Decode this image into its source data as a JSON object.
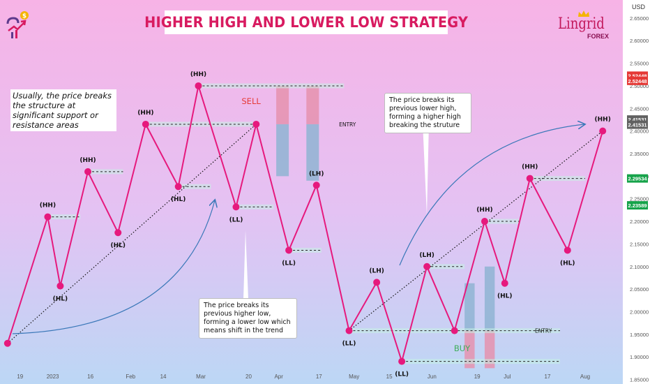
{
  "title": "HIGHER HIGH AND LOWER LOW STRATEGY",
  "brand": {
    "name": "Lingrid",
    "sub": "FOREX"
  },
  "note": "Usually, the price breaks the structure at significant support or resistance areas",
  "callouts": [
    {
      "text": "The price breaks its previous higher low, forming a lower low which means shift in the trend"
    },
    {
      "text": "The price breaks its previous lower high, forming a higher high breaking the struture"
    }
  ],
  "currency": "USD",
  "colors": {
    "line": "#e6197d",
    "point": "#e6197d",
    "level": "#10b981",
    "tp": "#e592ae",
    "sl": "#8fb4d2",
    "arrow": "#3a78b8",
    "sell": "#e53935",
    "buy": "#3dae5a"
  },
  "chart_data": {
    "type": "line",
    "series": [
      {
        "points": [
          {
            "x": "2022-12-14",
            "y": 1.93,
            "label": ""
          },
          {
            "x": "2022-12-30",
            "y": 2.21,
            "label": "(HH)"
          },
          {
            "x": "2023-01-04",
            "y": 2.057,
            "label": "(HL)"
          },
          {
            "x": "2023-01-15",
            "y": 2.31,
            "label": "(HH)"
          },
          {
            "x": "2023-01-27",
            "y": 2.175,
            "label": "(HL)"
          },
          {
            "x": "2023-02-07",
            "y": 2.415,
            "label": "(HH)"
          },
          {
            "x": "2023-02-20",
            "y": 2.277,
            "label": "(HL)"
          },
          {
            "x": "2023-02-28",
            "y": 2.5,
            "label": "(HH)"
          },
          {
            "x": "2023-03-15",
            "y": 2.232,
            "label": "(LL)"
          },
          {
            "x": "2023-03-23",
            "y": 2.415,
            "label": ""
          },
          {
            "x": "2023-04-05",
            "y": 2.136,
            "label": "(LL)"
          },
          {
            "x": "2023-04-16",
            "y": 2.28,
            "label": "(LH)"
          },
          {
            "x": "2023-04-29",
            "y": 1.958,
            "label": "(LL)"
          },
          {
            "x": "2023-05-10",
            "y": 2.065,
            "label": "(LH)"
          },
          {
            "x": "2023-05-20",
            "y": 1.89,
            "label": "(LL)"
          },
          {
            "x": "2023-05-30",
            "y": 2.1,
            "label": "(LH)"
          },
          {
            "x": "2023-06-10",
            "y": 1.958,
            "label": ""
          },
          {
            "x": "2023-06-22",
            "y": 2.2,
            "label": "(HH)"
          },
          {
            "x": "2023-06-30",
            "y": 2.063,
            "label": "(HL)"
          },
          {
            "x": "2023-07-10",
            "y": 2.295,
            "label": "(HH)"
          },
          {
            "x": "2023-07-25",
            "y": 2.136,
            "label": "(HL)"
          },
          {
            "x": "2023-08-08",
            "y": 2.4,
            "label": "(HH)"
          }
        ]
      }
    ],
    "trendlines": [
      {
        "from": {
          "x": "2022-12-14",
          "y": 1.93
        },
        "to": {
          "x": "2023-03-23",
          "y": 2.415
        }
      },
      {
        "from": {
          "x": "2023-04-29",
          "y": 1.958
        },
        "to": {
          "x": "2023-08-08",
          "y": 2.4
        }
      }
    ],
    "levels": [
      {
        "y": 2.21,
        "from": "2022-12-30",
        "to": "2023-01-12"
      },
      {
        "y": 2.31,
        "from": "2023-01-15",
        "to": "2023-01-29"
      },
      {
        "y": 2.415,
        "from": "2023-02-07",
        "to": "2023-03-23"
      },
      {
        "y": 2.5,
        "from": "2023-02-28",
        "to": "2023-04-27"
      },
      {
        "y": 2.277,
        "from": "2023-02-20",
        "to": "2023-03-05"
      },
      {
        "y": 2.232,
        "from": "2023-03-15",
        "to": "2023-03-30"
      },
      {
        "y": 2.136,
        "from": "2023-04-05",
        "to": "2023-04-18"
      },
      {
        "y": 1.958,
        "from": "2023-04-29",
        "to": "2023-07-22"
      },
      {
        "y": 1.89,
        "from": "2023-05-20",
        "to": "2023-07-22"
      },
      {
        "y": 2.1,
        "from": "2023-05-30",
        "to": "2023-06-14"
      },
      {
        "y": 2.2,
        "from": "2023-06-22",
        "to": "2023-07-06"
      },
      {
        "y": 2.295,
        "from": "2023-07-10",
        "to": "2023-08-01"
      }
    ],
    "positions": [
      {
        "side": "sell",
        "x_from": "2023-03-31",
        "x_to": "2023-04-05",
        "entry": 2.415,
        "target": 2.5,
        "stop": 2.3
      },
      {
        "side": "sell",
        "x_from": "2023-04-12",
        "x_to": "2023-04-17",
        "entry": 2.415,
        "target": 2.5,
        "stop": 2.29
      },
      {
        "side": "buy",
        "x_from": "2023-06-14",
        "x_to": "2023-06-18",
        "entry": 1.958,
        "target": 2.063,
        "stop": 1.875
      },
      {
        "side": "buy",
        "x_from": "2023-06-22",
        "x_to": "2023-06-26",
        "entry": 1.958,
        "target": 2.1,
        "stop": 1.875
      }
    ],
    "tags": [
      {
        "text": "SELL",
        "x": "2023-03-21",
        "y": 2.46
      },
      {
        "text": "BUY",
        "x": "2023-06-13",
        "y": 1.913
      }
    ],
    "entry_labels": [
      {
        "text": "ENTRY",
        "x": "2023-04-25",
        "y": 2.415
      },
      {
        "text": "ENTRY",
        "x": "2023-07-12",
        "y": 1.958
      }
    ],
    "price_badges": [
      {
        "text": "2.52448",
        "y": 2.5225,
        "color": "#e53935"
      },
      {
        "text": "2.52448",
        "y": 2.511,
        "color": "#e53935"
      },
      {
        "text": "2.41531",
        "y": 2.4255,
        "color": "#616161"
      },
      {
        "text": "2.41531",
        "y": 2.414,
        "color": "#616161"
      },
      {
        "text": "2.29534",
        "y": 2.295,
        "color": "#16a34a"
      },
      {
        "text": "2.23589",
        "y": 2.2355,
        "color": "#16a34a"
      }
    ],
    "yaxis": {
      "range": [
        1.84,
        2.69
      ],
      "ticks": [
        1.85,
        1.9,
        1.95,
        2.0,
        2.05,
        2.1,
        2.15,
        2.2,
        2.25,
        2.3,
        2.35,
        2.4,
        2.45,
        2.5,
        2.55,
        2.6,
        2.65
      ],
      "tick_labels": [
        "1.85000",
        "1.90000",
        "1.95000",
        "2.00000",
        "2.05000",
        "2.10000",
        "2.15000",
        "2.20000",
        "2.25000",
        "2.30000",
        "2.35000",
        "2.40000",
        "2.45000",
        "2.50000",
        "2.55000",
        "2.60000",
        "2.65000"
      ]
    },
    "xaxis": {
      "range": [
        "2022-12-11",
        "2023-08-16"
      ],
      "ticks": [
        {
          "x": "2022-12-19",
          "label": "19"
        },
        {
          "x": "2023-01-01",
          "label": "2023"
        },
        {
          "x": "2023-01-16",
          "label": "16"
        },
        {
          "x": "2023-02-01",
          "label": "Feb"
        },
        {
          "x": "2023-02-14",
          "label": "14"
        },
        {
          "x": "2023-03-01",
          "label": "Mar"
        },
        {
          "x": "2023-03-20",
          "label": "20"
        },
        {
          "x": "2023-04-01",
          "label": "Apr"
        },
        {
          "x": "2023-04-17",
          "label": "17"
        },
        {
          "x": "2023-05-01",
          "label": "May"
        },
        {
          "x": "2023-05-15",
          "label": "15"
        },
        {
          "x": "2023-06-01",
          "label": "Jun"
        },
        {
          "x": "2023-06-19",
          "label": "19"
        },
        {
          "x": "2023-07-01",
          "label": "Jul"
        },
        {
          "x": "2023-07-17",
          "label": "17"
        },
        {
          "x": "2023-08-01",
          "label": "Aug"
        }
      ]
    },
    "grid": false
  }
}
